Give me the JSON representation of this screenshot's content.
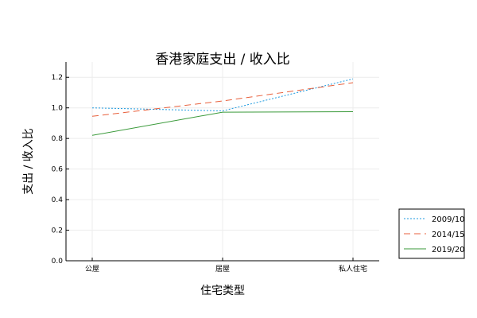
{
  "chart_data": {
    "type": "line",
    "title": "香港家庭支出 / 收入比",
    "xlabel": "住宅类型",
    "ylabel": "支出 / 收入比",
    "categories": [
      "公屋",
      "居屋",
      "私人住宅"
    ],
    "ylim": [
      0,
      1.3
    ],
    "yticks": [
      "0.0",
      "0.2",
      "0.4",
      "0.6",
      "0.8",
      "1.0",
      "1.2"
    ],
    "grid": true,
    "legend_position": "outside-bottom-right",
    "series": [
      {
        "name": "2009/10",
        "values": [
          1.0,
          0.98,
          1.19
        ],
        "color": "#1f9be0",
        "dash": "2,2"
      },
      {
        "name": "2014/15",
        "values": [
          0.945,
          1.045,
          1.165
        ],
        "color": "#e8603c",
        "dash": "8,5"
      },
      {
        "name": "2019/20",
        "values": [
          0.82,
          0.972,
          0.975
        ],
        "color": "#3a9a3a",
        "dash": ""
      }
    ]
  }
}
